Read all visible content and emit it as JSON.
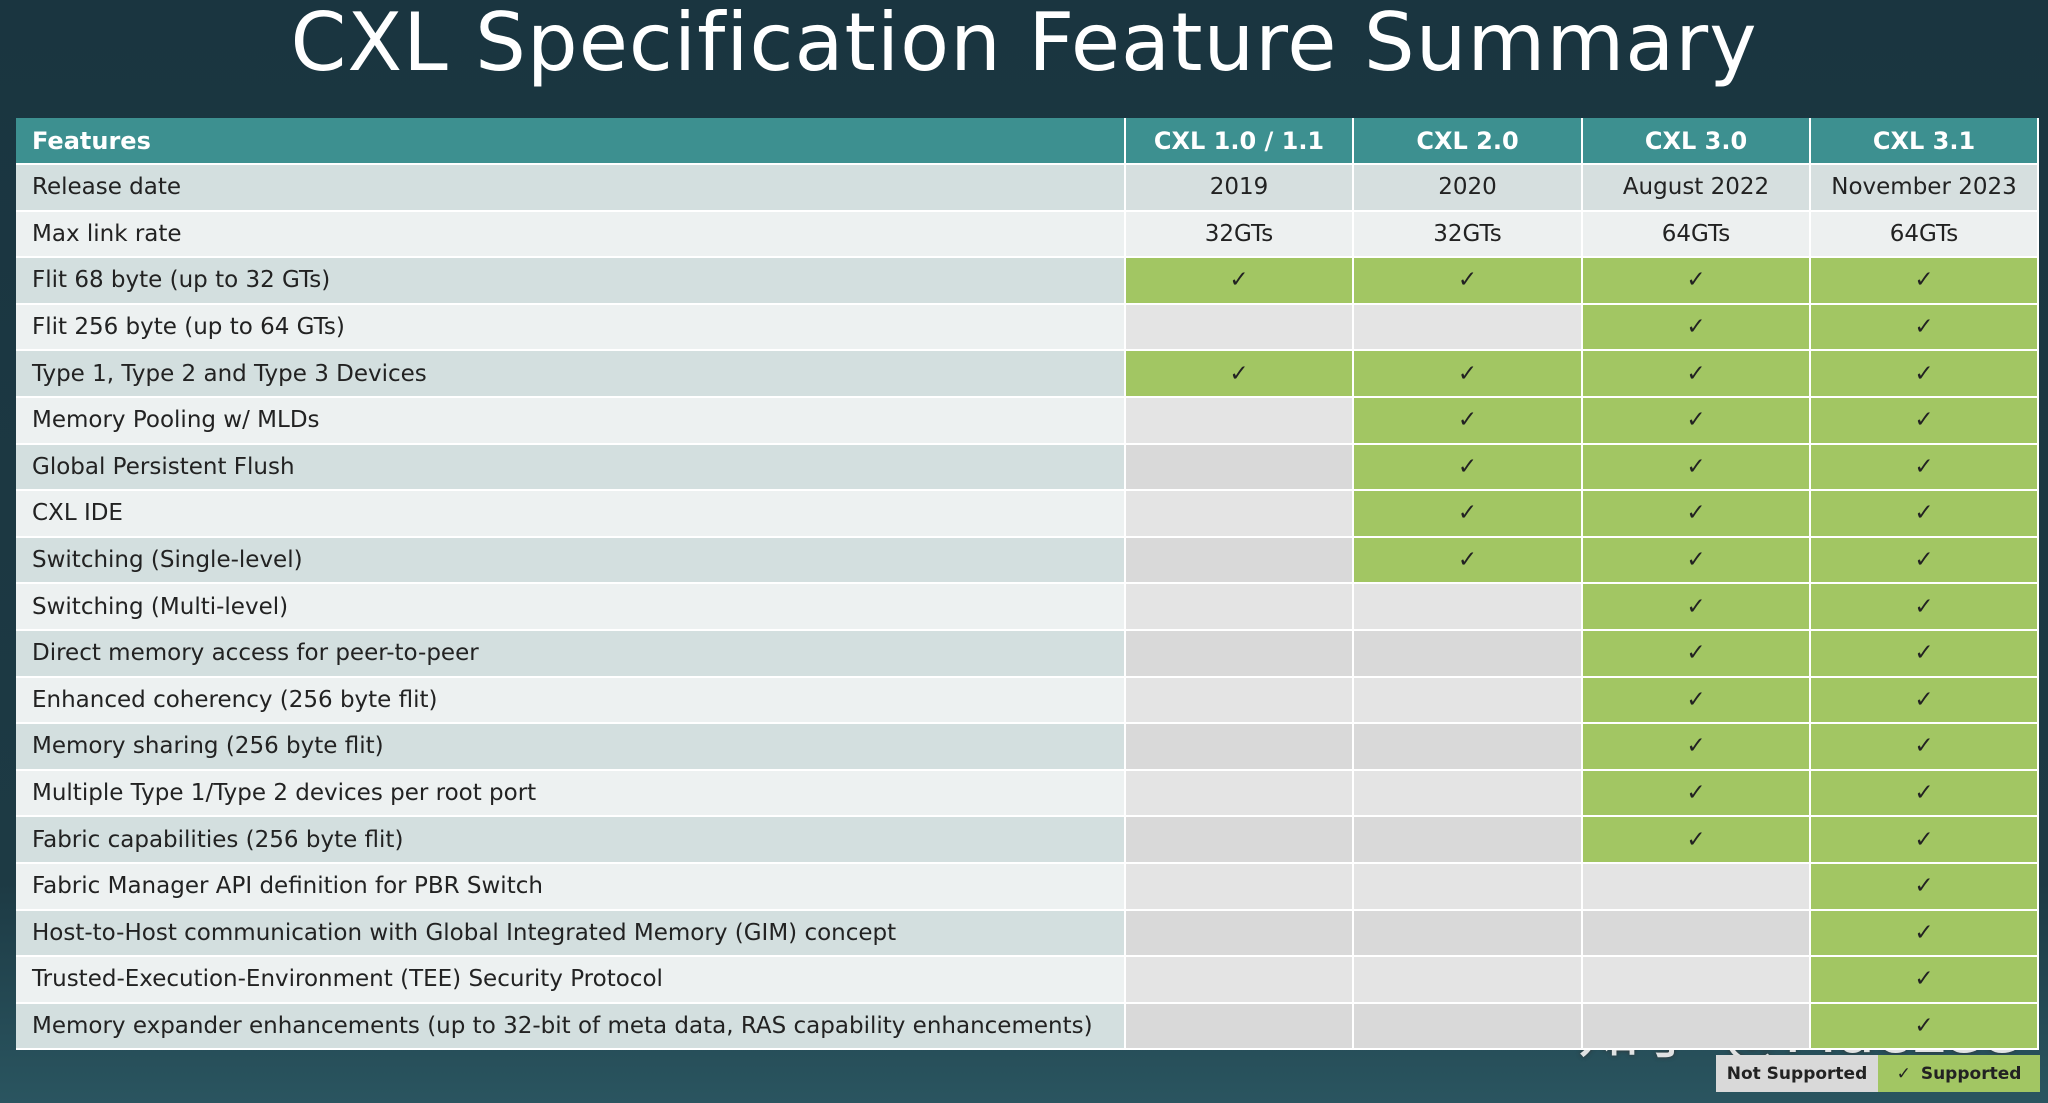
{
  "title": "CXL Specification Feature Summary",
  "table": {
    "header": [
      "Features",
      "CXL 1.0 / 1.1",
      "CXL 2.0",
      "CXL 3.0",
      "CXL 3.1"
    ],
    "rows": [
      [
        "Release date",
        "2019",
        "2020",
        "August 2022",
        "November 2023"
      ],
      [
        "Max link rate",
        "32GTs",
        "32GTs",
        "64GTs",
        "64GTs"
      ],
      [
        "Flit 68 byte (up to 32 GTs)",
        "✓",
        "✓",
        "✓",
        "✓"
      ],
      [
        "Flit 256 byte (up to 64 GTs)",
        null,
        null,
        "✓",
        "✓"
      ],
      [
        "Type 1, Type 2 and Type 3 Devices",
        "✓",
        "✓",
        "✓",
        "✓"
      ],
      [
        "Memory Pooling w/ MLDs",
        null,
        "✓",
        "✓",
        "✓"
      ],
      [
        "Global Persistent Flush",
        null,
        "✓",
        "✓",
        "✓"
      ],
      [
        "CXL IDE",
        null,
        "✓",
        "✓",
        "✓"
      ],
      [
        "Switching (Single-level)",
        null,
        "✓",
        "✓",
        "✓"
      ],
      [
        "Switching (Multi-level)",
        null,
        null,
        "✓",
        "✓"
      ],
      [
        "Direct memory access for peer-to-peer",
        null,
        null,
        "✓",
        "✓"
      ],
      [
        "Enhanced coherency (256 byte flit)",
        null,
        null,
        "✓",
        "✓"
      ],
      [
        "Memory sharing (256 byte flit)",
        null,
        null,
        "✓",
        "✓"
      ],
      [
        "Multiple Type 1/Type 2 devices per root port",
        null,
        null,
        "✓",
        "✓"
      ],
      [
        "Fabric capabilities (256 byte flit)",
        null,
        null,
        "✓",
        "✓"
      ],
      [
        "Fabric Manager API definition for PBR Switch",
        null,
        null,
        null,
        "✓"
      ],
      [
        "Host-to-Host communication with Global Integrated Memory (GIM) concept",
        null,
        null,
        null,
        "✓"
      ],
      [
        "Trusted-Execution-Environment (TEE) Security Protocol",
        null,
        null,
        null,
        "✓"
      ],
      [
        "Memory expander enhancements (up to 32-bit of meta data, RAS capability enhancements)",
        null,
        null,
        null,
        "✓"
      ]
    ]
  },
  "legend": [
    {
      "label": "Not Supported"
    },
    {
      "mark": "✓",
      "label": "Supported"
    }
  ],
  "watermark": "知乎 @MacLee"
}
